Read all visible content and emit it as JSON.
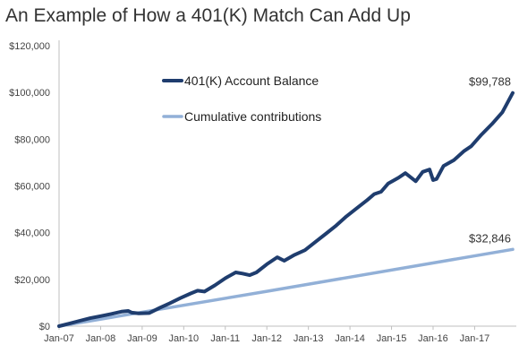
{
  "chart_data": {
    "type": "line",
    "title": "An Example of How a 401(K) Match Can Add Up",
    "xlabel": "",
    "ylabel": "",
    "x_range": [
      "2007-01",
      "2017-12"
    ],
    "ylim": [
      0,
      120000
    ],
    "y_ticks": [
      0,
      20000,
      40000,
      60000,
      80000,
      100000,
      120000
    ],
    "y_tick_labels": [
      "$0",
      "$20,000",
      "$40,000",
      "$60,000",
      "$80,000",
      "$100,000",
      "$120,000"
    ],
    "x_ticks": [
      "2007-01",
      "2008-01",
      "2009-01",
      "2010-01",
      "2011-01",
      "2012-01",
      "2013-01",
      "2014-01",
      "2015-01",
      "2016-01",
      "2017-01"
    ],
    "x_tick_labels": [
      "Jan-07",
      "Jan-08",
      "Jan-09",
      "Jan-10",
      "Jan-11",
      "Jan-12",
      "Jan-13",
      "Jan-14",
      "Jan-15",
      "Jan-16",
      "Jan-17"
    ],
    "grid": false,
    "legend": "inside-top-left",
    "series": [
      {
        "name": "401(K) Account Balance",
        "color": "#1f3d6e",
        "points": [
          [
            "2007-01",
            0
          ],
          [
            "2007-04",
            1100
          ],
          [
            "2007-07",
            2300
          ],
          [
            "2007-10",
            3400
          ],
          [
            "2008-01",
            4300
          ],
          [
            "2008-04",
            5200
          ],
          [
            "2008-07",
            6200
          ],
          [
            "2008-09",
            6500
          ],
          [
            "2008-10",
            5800
          ],
          [
            "2008-12",
            5500
          ],
          [
            "2009-03",
            5600
          ],
          [
            "2009-06",
            7800
          ],
          [
            "2009-09",
            9800
          ],
          [
            "2009-12",
            12000
          ],
          [
            "2010-03",
            14000
          ],
          [
            "2010-05",
            15200
          ],
          [
            "2010-07",
            14800
          ],
          [
            "2010-10",
            17500
          ],
          [
            "2011-01",
            20500
          ],
          [
            "2011-04",
            23000
          ],
          [
            "2011-06",
            22500
          ],
          [
            "2011-08",
            21800
          ],
          [
            "2011-10",
            23000
          ],
          [
            "2012-01",
            26500
          ],
          [
            "2012-04",
            29500
          ],
          [
            "2012-06",
            28000
          ],
          [
            "2012-09",
            30500
          ],
          [
            "2012-12",
            32500
          ],
          [
            "2013-03",
            36000
          ],
          [
            "2013-06",
            39500
          ],
          [
            "2013-09",
            43000
          ],
          [
            "2013-12",
            47000
          ],
          [
            "2014-03",
            50500
          ],
          [
            "2014-06",
            54000
          ],
          [
            "2014-08",
            56500
          ],
          [
            "2014-10",
            57500
          ],
          [
            "2014-12",
            61000
          ],
          [
            "2015-03",
            63500
          ],
          [
            "2015-05",
            65500
          ],
          [
            "2015-08",
            62000
          ],
          [
            "2015-10",
            66000
          ],
          [
            "2015-12",
            67000
          ],
          [
            "2016-01",
            62500
          ],
          [
            "2016-02",
            63000
          ],
          [
            "2016-04",
            68500
          ],
          [
            "2016-07",
            71000
          ],
          [
            "2016-10",
            75000
          ],
          [
            "2016-12",
            77000
          ],
          [
            "2017-03",
            82000
          ],
          [
            "2017-06",
            86500
          ],
          [
            "2017-09",
            91500
          ],
          [
            "2017-12",
            99788
          ]
        ]
      },
      {
        "name": "Cumulative contributions",
        "color": "#92b0d7",
        "points": [
          [
            "2007-01",
            0
          ],
          [
            "2012-01",
            14930
          ],
          [
            "2017-12",
            32846
          ]
        ]
      }
    ],
    "annotations": [
      {
        "series": 0,
        "text": "$99,788"
      },
      {
        "series": 1,
        "text": "$32,846"
      }
    ]
  }
}
